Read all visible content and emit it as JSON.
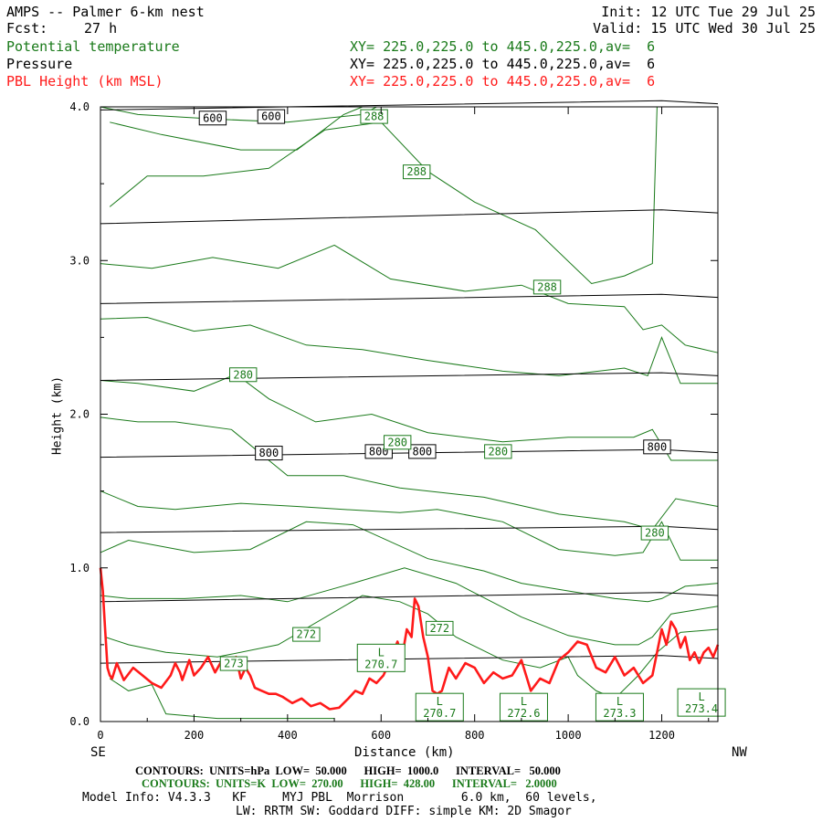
{
  "header": {
    "title": "AMPS -- Palmer 6-km nest",
    "fcst_label": "Fcst:",
    "fcst_value": "27 h",
    "init": "Init: 12 UTC Tue 29 Jul 25",
    "valid": "Valid: 15 UTC Wed 30 Jul 25"
  },
  "legend": [
    {
      "name": "Potential temperature",
      "xy": "XY= 225.0,225.0 to 445.0,225.0,av=  6",
      "color": "#1a7a1a"
    },
    {
      "name": "Pressure",
      "xy": "XY= 225.0,225.0 to 445.0,225.0,av=  6",
      "color": "#000000"
    },
    {
      "name": "PBL Height (km MSL)",
      "xy": "XY= 225.0,225.0 to 445.0,225.0,av=  6",
      "color": "#ff1a1a"
    }
  ],
  "footer": {
    "se": "SE",
    "nw": "NW",
    "contours_p": "CONTOURS:  UNITS=hPa  LOW=  50.000      HIGH=  1000.0      INTERVAL=   50.000",
    "contours_t": "CONTOURS:  UNITS=K  LOW=  270.00      HIGH=  428.00      INTERVAL=   2.0000",
    "model_info": "Model Info: V4.3.3   KF     MYJ PBL  Morrison        6.0 km,  60 levels,",
    "model_info2": "LW: RRTM SW: Goddard DIFF: simple KM: 2D Smagor"
  },
  "chart_data": {
    "type": "line",
    "xlabel": "Distance (km)",
    "ylabel": "Height (km)",
    "xlim": [
      0,
      1320
    ],
    "ylim": [
      0,
      4.0
    ],
    "x_ticks": [
      0,
      200,
      400,
      600,
      800,
      1000,
      1200
    ],
    "y_ticks": [
      "0.0",
      "1.0",
      "2.0",
      "3.0",
      "4.0"
    ],
    "colors": {
      "pressure": "#000000",
      "theta": "#1a7a1a",
      "pbl": "#ff1a1a"
    },
    "pressure_levels": [
      {
        "y0": 3.98,
        "y1": 4.04
      },
      {
        "y0": 3.24,
        "y1": 3.33
      },
      {
        "y0": 2.72,
        "y1": 2.78
      },
      {
        "y0": 2.22,
        "y1": 2.27
      },
      {
        "y0": 1.72,
        "y1": 1.77
      },
      {
        "y0": 1.23,
        "y1": 1.27
      },
      {
        "y0": 0.78,
        "y1": 0.84
      },
      {
        "y0": 0.38,
        "y1": 0.43
      }
    ],
    "pressure_labels": [
      {
        "text": "600",
        "x": 240,
        "y": 3.93
      },
      {
        "text": "600",
        "x": 365,
        "y": 3.94
      },
      {
        "text": "800",
        "x": 360,
        "y": 1.75
      },
      {
        "text": "800",
        "x": 595,
        "y": 1.76
      },
      {
        "text": "800",
        "x": 688,
        "y": 1.76
      },
      {
        "text": "800",
        "x": 1190,
        "y": 1.79
      }
    ],
    "theta_labels": [
      {
        "text": "288",
        "x": 585,
        "y": 3.94
      },
      {
        "text": "288",
        "x": 676,
        "y": 3.58
      },
      {
        "text": "288",
        "x": 955,
        "y": 2.83
      },
      {
        "text": "280",
        "x": 305,
        "y": 2.26
      },
      {
        "text": "280",
        "x": 635,
        "y": 1.82
      },
      {
        "text": "280",
        "x": 850,
        "y": 1.76
      },
      {
        "text": "280",
        "x": 1185,
        "y": 1.23
      },
      {
        "text": "272",
        "x": 440,
        "y": 0.57
      },
      {
        "text": "272",
        "x": 725,
        "y": 0.61
      },
      {
        "text": "273",
        "x": 285,
        "y": 0.38
      }
    ],
    "low_labels": [
      {
        "text": "L",
        "value": "270.7",
        "x": 600,
        "y": 0.42
      },
      {
        "text": "L",
        "value": "270.7",
        "x": 725,
        "y": 0.1
      },
      {
        "text": "L",
        "value": "272.6",
        "x": 905,
        "y": 0.1
      },
      {
        "text": "L",
        "value": "273.3",
        "x": 1110,
        "y": 0.1
      },
      {
        "text": "L",
        "value": "273.4",
        "x": 1285,
        "y": 0.13
      }
    ],
    "theta_curves": [
      [
        [
          0,
          4.0
        ],
        [
          80,
          3.95
        ],
        [
          250,
          3.92
        ],
        [
          400,
          3.9
        ],
        [
          560,
          3.95
        ],
        [
          590,
          4.0
        ]
      ],
      [
        [
          20,
          3.9
        ],
        [
          130,
          3.82
        ],
        [
          300,
          3.72
        ],
        [
          420,
          3.72
        ],
        [
          520,
          3.95
        ],
        [
          560,
          4.0
        ]
      ],
      [
        [
          20,
          3.35
        ],
        [
          100,
          3.55
        ],
        [
          220,
          3.55
        ],
        [
          360,
          3.6
        ],
        [
          480,
          3.85
        ],
        [
          600,
          3.9
        ],
        [
          700,
          3.58
        ],
        [
          800,
          3.38
        ],
        [
          930,
          3.2
        ],
        [
          1050,
          2.85
        ],
        [
          1120,
          2.9
        ],
        [
          1180,
          2.98
        ],
        [
          1190,
          4.0
        ]
      ],
      [
        [
          0,
          2.98
        ],
        [
          110,
          2.95
        ],
        [
          240,
          3.02
        ],
        [
          380,
          2.95
        ],
        [
          500,
          3.1
        ],
        [
          620,
          2.88
        ],
        [
          780,
          2.8
        ],
        [
          900,
          2.84
        ],
        [
          1000,
          2.72
        ],
        [
          1120,
          2.7
        ],
        [
          1160,
          2.55
        ],
        [
          1200,
          2.58
        ],
        [
          1250,
          2.45
        ],
        [
          1320,
          2.4
        ]
      ],
      [
        [
          0,
          2.62
        ],
        [
          100,
          2.63
        ],
        [
          200,
          2.54
        ],
        [
          320,
          2.58
        ],
        [
          440,
          2.45
        ],
        [
          560,
          2.42
        ],
        [
          700,
          2.35
        ],
        [
          860,
          2.28
        ],
        [
          980,
          2.25
        ],
        [
          1120,
          2.3
        ],
        [
          1170,
          2.25
        ],
        [
          1200,
          2.5
        ],
        [
          1240,
          2.2
        ],
        [
          1320,
          2.2
        ]
      ],
      [
        [
          0,
          2.22
        ],
        [
          80,
          2.2
        ],
        [
          200,
          2.15
        ],
        [
          290,
          2.26
        ],
        [
          360,
          2.1
        ],
        [
          460,
          1.95
        ],
        [
          580,
          2.0
        ],
        [
          700,
          1.88
        ],
        [
          860,
          1.82
        ],
        [
          1000,
          1.85
        ],
        [
          1140,
          1.85
        ],
        [
          1180,
          1.9
        ],
        [
          1220,
          1.7
        ],
        [
          1320,
          1.7
        ]
      ],
      [
        [
          0,
          1.98
        ],
        [
          80,
          1.95
        ],
        [
          160,
          1.95
        ],
        [
          280,
          1.9
        ],
        [
          400,
          1.6
        ],
        [
          520,
          1.6
        ],
        [
          640,
          1.52
        ],
        [
          820,
          1.46
        ],
        [
          980,
          1.35
        ],
        [
          1120,
          1.3
        ],
        [
          1180,
          1.25
        ],
        [
          1230,
          1.45
        ],
        [
          1320,
          1.4
        ]
      ],
      [
        [
          0,
          1.5
        ],
        [
          80,
          1.4
        ],
        [
          160,
          1.38
        ],
        [
          300,
          1.42
        ],
        [
          420,
          1.4
        ],
        [
          520,
          1.38
        ],
        [
          640,
          1.36
        ],
        [
          720,
          1.38
        ],
        [
          860,
          1.3
        ],
        [
          980,
          1.12
        ],
        [
          1100,
          1.08
        ],
        [
          1160,
          1.1
        ],
        [
          1200,
          1.3
        ],
        [
          1240,
          1.05
        ],
        [
          1320,
          1.05
        ]
      ],
      [
        [
          0,
          1.1
        ],
        [
          60,
          1.18
        ],
        [
          200,
          1.1
        ],
        [
          320,
          1.12
        ],
        [
          440,
          1.3
        ],
        [
          540,
          1.28
        ],
        [
          700,
          1.06
        ],
        [
          820,
          0.98
        ],
        [
          900,
          0.9
        ],
        [
          1000,
          0.85
        ],
        [
          1100,
          0.8
        ],
        [
          1170,
          0.78
        ],
        [
          1200,
          0.8
        ],
        [
          1250,
          0.88
        ],
        [
          1320,
          0.9
        ]
      ],
      [
        [
          0,
          0.82
        ],
        [
          60,
          0.8
        ],
        [
          180,
          0.8
        ],
        [
          300,
          0.82
        ],
        [
          400,
          0.78
        ],
        [
          540,
          0.9
        ],
        [
          650,
          1.0
        ],
        [
          760,
          0.9
        ],
        [
          900,
          0.68
        ],
        [
          1000,
          0.56
        ],
        [
          1100,
          0.5
        ],
        [
          1150,
          0.5
        ],
        [
          1180,
          0.55
        ],
        [
          1220,
          0.7
        ],
        [
          1320,
          0.75
        ]
      ],
      [
        [
          10,
          0.55
        ],
        [
          60,
          0.5
        ],
        [
          140,
          0.45
        ],
        [
          250,
          0.42
        ],
        [
          380,
          0.5
        ],
        [
          560,
          0.82
        ],
        [
          640,
          0.78
        ],
        [
          700,
          0.7
        ],
        [
          760,
          0.55
        ],
        [
          860,
          0.4
        ],
        [
          940,
          0.35
        ],
        [
          1000,
          0.42
        ],
        [
          1020,
          0.3
        ],
        [
          1060,
          0.2
        ],
        [
          1100,
          0.15
        ],
        [
          1150,
          0.3
        ],
        [
          1190,
          0.45
        ],
        [
          1240,
          0.58
        ],
        [
          1320,
          0.6
        ]
      ],
      [
        [
          20,
          0.28
        ],
        [
          60,
          0.2
        ],
        [
          110,
          0.24
        ],
        [
          140,
          0.05
        ],
        [
          250,
          0.02
        ],
        [
          400,
          0.02
        ],
        [
          500,
          0.02
        ]
      ],
      [
        [
          1000,
          0.0
        ],
        [
          1020,
          0.0
        ],
        [
          1040,
          0.0
        ]
      ]
    ],
    "pbl": {
      "x": [
        0,
        5,
        10,
        15,
        20,
        25,
        35,
        50,
        70,
        90,
        110,
        130,
        150,
        160,
        170,
        175,
        190,
        200,
        215,
        230,
        245,
        260,
        275,
        290,
        300,
        310,
        320,
        330,
        345,
        360,
        375,
        390,
        410,
        430,
        450,
        470,
        490,
        510,
        530,
        545,
        560,
        575,
        590,
        605,
        620,
        635,
        645,
        655,
        665,
        672,
        680,
        690,
        700,
        710,
        720,
        730,
        745,
        760,
        780,
        800,
        820,
        840,
        860,
        880,
        900,
        920,
        940,
        960,
        980,
        1000,
        1020,
        1040,
        1060,
        1080,
        1100,
        1120,
        1140,
        1160,
        1180,
        1190,
        1200,
        1210,
        1220,
        1230,
        1240,
        1250,
        1260,
        1270,
        1280,
        1290,
        1300,
        1310,
        1320
      ],
      "y": [
        1.0,
        0.85,
        0.6,
        0.35,
        0.3,
        0.28,
        0.38,
        0.27,
        0.35,
        0.3,
        0.25,
        0.22,
        0.3,
        0.38,
        0.32,
        0.27,
        0.4,
        0.3,
        0.35,
        0.42,
        0.32,
        0.4,
        0.35,
        0.42,
        0.28,
        0.35,
        0.3,
        0.22,
        0.2,
        0.18,
        0.18,
        0.16,
        0.12,
        0.15,
        0.1,
        0.12,
        0.08,
        0.09,
        0.15,
        0.2,
        0.18,
        0.28,
        0.25,
        0.3,
        0.4,
        0.52,
        0.42,
        0.6,
        0.55,
        0.8,
        0.75,
        0.55,
        0.42,
        0.2,
        0.18,
        0.2,
        0.35,
        0.28,
        0.38,
        0.35,
        0.25,
        0.32,
        0.28,
        0.3,
        0.4,
        0.2,
        0.28,
        0.25,
        0.4,
        0.45,
        0.52,
        0.5,
        0.35,
        0.32,
        0.42,
        0.3,
        0.35,
        0.25,
        0.3,
        0.45,
        0.6,
        0.5,
        0.65,
        0.6,
        0.48,
        0.55,
        0.4,
        0.45,
        0.38,
        0.45,
        0.48,
        0.42,
        0.5
      ]
    }
  }
}
